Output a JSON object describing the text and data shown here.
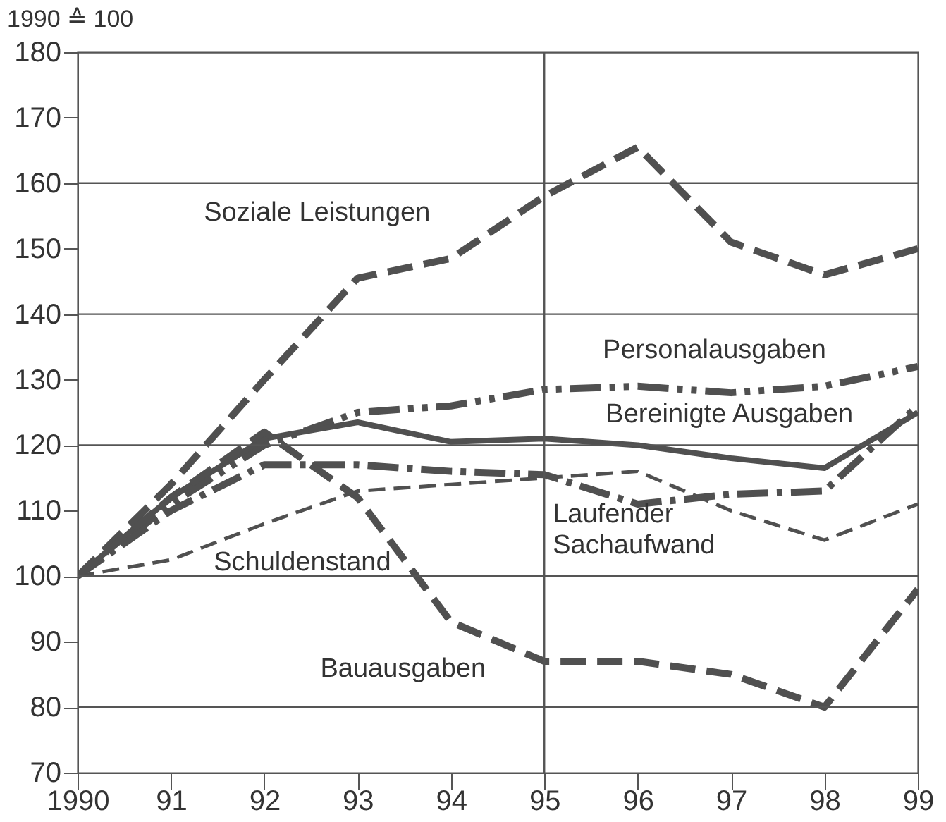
{
  "chart_data": {
    "type": "line",
    "ylabel": "1990 ≙ 100",
    "x": [
      1990,
      1991,
      1992,
      1993,
      1994,
      1995,
      1996,
      1997,
      1998,
      1999
    ],
    "xlim": [
      1990,
      1999
    ],
    "xticks": [
      {
        "value": 1990,
        "label": "1990"
      },
      {
        "value": 1991,
        "label": "91"
      },
      {
        "value": 1992,
        "label": "92"
      },
      {
        "value": 1993,
        "label": "93"
      },
      {
        "value": 1994,
        "label": "94"
      },
      {
        "value": 1995,
        "label": "95"
      },
      {
        "value": 1996,
        "label": "96"
      },
      {
        "value": 1997,
        "label": "97"
      },
      {
        "value": 1998,
        "label": "98"
      },
      {
        "value": 1999,
        "label": "99"
      }
    ],
    "ylim": [
      70,
      180
    ],
    "yticks": [
      70,
      80,
      90,
      100,
      110,
      120,
      130,
      140,
      150,
      160,
      170,
      180
    ],
    "grid": false,
    "marker": "none",
    "series": [
      {
        "name": "Soziale Leistungen",
        "color": "#505050",
        "line_style": "dashed",
        "values": [
          100,
          114,
          130,
          145.5,
          148.5,
          158,
          165.5,
          151,
          146,
          150
        ]
      },
      {
        "name": "Personalausgaben",
        "color": "#505050",
        "line_style": "dashed",
        "values": [
          100,
          111,
          120,
          125,
          126,
          128.5,
          129,
          128,
          129,
          132
        ]
      },
      {
        "name": "Bereinigte Ausgaben",
        "color": "#505050",
        "line_style": "solid",
        "values": [
          100,
          112,
          121,
          123.5,
          120.5,
          121,
          120,
          118,
          116.5,
          125
        ]
      },
      {
        "name": "Laufender Sachaufwand",
        "color": "#505050",
        "line_style": "dashed",
        "values": [
          100,
          110,
          117,
          117,
          116,
          115.5,
          111,
          112.5,
          113,
          126
        ]
      },
      {
        "name": "Schuldenstand",
        "color": "#505050",
        "line_style": "dashed",
        "values": [
          100,
          102.5,
          108,
          113,
          114,
          115,
          116,
          110,
          105.5,
          111
        ]
      },
      {
        "name": "Bauausgaben",
        "color": "#505050",
        "line_style": "dashed",
        "values": [
          100,
          112,
          122,
          112,
          93,
          87,
          87,
          85,
          80,
          98
        ]
      }
    ],
    "ref_lines": [
      {
        "axis": "y",
        "value": 80,
        "color": "#555555"
      },
      {
        "axis": "y",
        "value": 100,
        "color": "#555555"
      },
      {
        "axis": "y",
        "value": 120,
        "color": "#555555"
      },
      {
        "axis": "y",
        "value": 140,
        "color": "#555555"
      },
      {
        "axis": "y",
        "value": 160,
        "color": "#555555"
      },
      {
        "axis": "x",
        "value": 1995,
        "color": "#555555"
      }
    ]
  }
}
